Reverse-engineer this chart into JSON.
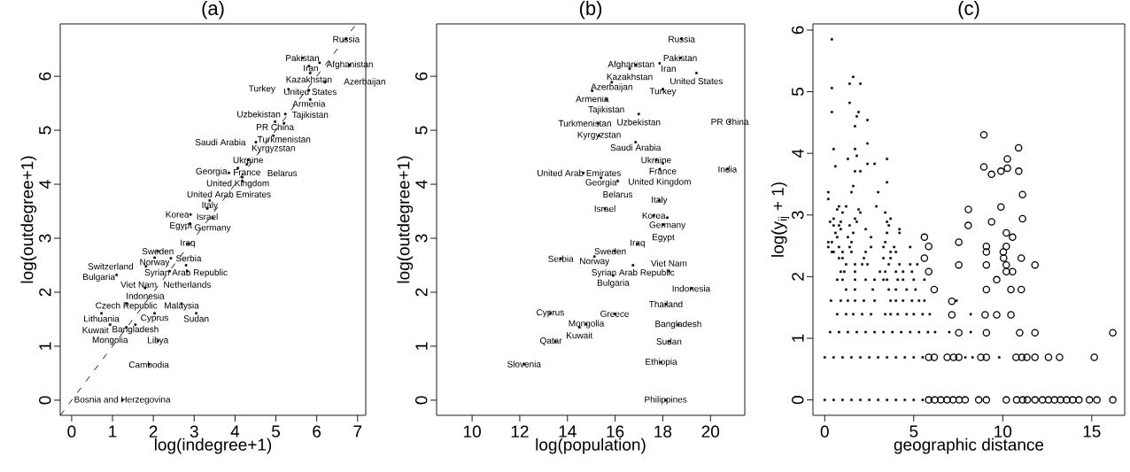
{
  "chart_data": [
    {
      "type": "scatter",
      "title": "(a)",
      "xlabel": "log(indegree+1)",
      "ylabel": "log(outdegree+1)",
      "xlim": [
        -0.28,
        7.2
      ],
      "ylim": [
        -0.28,
        6.97
      ],
      "xticks": [
        0,
        1,
        2,
        3,
        4,
        5,
        6,
        7
      ],
      "yticks": [
        0,
        1,
        2,
        3,
        4,
        5,
        6
      ],
      "series": [
        {
          "type": "line",
          "color": "#000000",
          "line_style": "dashed",
          "x": [
            -0.28,
            6.97
          ],
          "values": [
            -0.28,
            6.97
          ]
        },
        {
          "type": "scatter",
          "color": "#000000",
          "marker": "square",
          "x": [
            6.72,
            5.65,
            6.81,
            6.07,
            5.81,
            5.84,
            6.2,
            5.31,
            5.81,
            5.84,
            5.23,
            4.98,
            5.2,
            4.94,
            4.51,
            4.32,
            4.29,
            4.07,
            3.85,
            4.18,
            4.18,
            3.38,
            3.32,
            2.91,
            3.45,
            2.89,
            2.84,
            2.11,
            2.03,
            2.43,
            2.8,
            1.82,
            2.83,
            2.4,
            1.1,
            1.8,
            2.69,
            1.34,
            0.73,
            3.05,
            2.03,
            1.56,
            0.94,
            1.34,
            2.11,
            1.89,
            1.24
          ],
          "values": [
            6.69,
            6.34,
            6.21,
            6.25,
            6.19,
            6.06,
            5.89,
            5.76,
            5.74,
            5.57,
            5.3,
            5.16,
            5.13,
            4.9,
            4.78,
            4.45,
            4.37,
            4.3,
            4.21,
            4.13,
            4.06,
            3.7,
            3.55,
            3.44,
            3.38,
            3.27,
            2.9,
            2.76,
            2.64,
            2.63,
            2.5,
            2.48,
            2.39,
            2.39,
            2.32,
            2.08,
            1.79,
            1.79,
            1.61,
            1.61,
            1.61,
            1.4,
            1.4,
            1.35,
            1.1,
            0.66,
            0.0
          ]
        }
      ],
      "annotations": [
        {
          "text": "Russia",
          "x": 6.72,
          "y": 6.69
        },
        {
          "text": "Pakistan",
          "x": 5.65,
          "y": 6.34
        },
        {
          "text": "Afghanistan",
          "x": 6.81,
          "y": 6.21
        },
        {
          "text": "Iran",
          "x": 6.07,
          "y": 6.25
        },
        {
          "text": "Kazakhstan",
          "x": 5.81,
          "y": 6.19
        },
        {
          "text": "United States",
          "x": 5.84,
          "y": 6.06
        },
        {
          "text": "Azerbaijan",
          "x": 6.2,
          "y": 5.89
        },
        {
          "text": "Turkey",
          "x": 5.31,
          "y": 5.76
        },
        {
          "text": "Armenia",
          "x": 5.81,
          "y": 5.74
        },
        {
          "text": "Tajikistan",
          "x": 5.84,
          "y": 5.57
        },
        {
          "text": "Uzbekistan",
          "x": 5.23,
          "y": 5.3
        },
        {
          "text": "PR China",
          "x": 4.98,
          "y": 5.16
        },
        {
          "text": "Turkmenistan",
          "x": 5.2,
          "y": 5.13
        },
        {
          "text": "Kyrgyzstan",
          "x": 4.94,
          "y": 4.9
        },
        {
          "text": "Saudi Arabia",
          "x": 4.51,
          "y": 4.78
        },
        {
          "text": "Ukraine",
          "x": 4.32,
          "y": 4.45
        },
        {
          "text": "France",
          "x": 4.29,
          "y": 4.37
        },
        {
          "text": "United Kingdom",
          "x": 4.07,
          "y": 4.3
        },
        {
          "text": "United Arab Emirates",
          "x": 3.85,
          "y": 4.21
        },
        {
          "text": "Georgia",
          "x": 4.18,
          "y": 4.13
        },
        {
          "text": "Belarus",
          "x": 4.18,
          "y": 4.06
        },
        {
          "text": "Italy",
          "x": 3.38,
          "y": 3.7
        },
        {
          "text": "Israel",
          "x": 3.32,
          "y": 3.55
        },
        {
          "text": "Korea",
          "x": 2.91,
          "y": 3.44
        },
        {
          "text": "Germany",
          "x": 3.45,
          "y": 3.38
        },
        {
          "text": "Egypt",
          "x": 2.89,
          "y": 3.27
        },
        {
          "text": "Iraq",
          "x": 2.84,
          "y": 2.9
        },
        {
          "text": "Sweden",
          "x": 2.11,
          "y": 2.76
        },
        {
          "text": "Norway",
          "x": 2.03,
          "y": 2.64
        },
        {
          "text": "Serbia",
          "x": 2.43,
          "y": 2.63
        },
        {
          "text": "Syrian Arab Republic",
          "x": 2.8,
          "y": 2.5
        },
        {
          "text": "Switzerland",
          "x": 1.82,
          "y": 2.48
        },
        {
          "text": "Netherlands",
          "x": 2.83,
          "y": 2.39
        },
        {
          "text": "Viet Nam",
          "x": 2.4,
          "y": 2.39
        },
        {
          "text": "Bulgaria",
          "x": 1.1,
          "y": 2.32
        },
        {
          "text": "Indonesia",
          "x": 1.8,
          "y": 2.08
        },
        {
          "text": "Malaysia",
          "x": 2.69,
          "y": 1.79
        },
        {
          "text": "Czech Republic",
          "x": 1.34,
          "y": 1.79
        },
        {
          "text": "Lithuania",
          "x": 0.73,
          "y": 1.61
        },
        {
          "text": "Sudan",
          "x": 3.05,
          "y": 1.61
        },
        {
          "text": "Cyprus",
          "x": 2.03,
          "y": 1.61
        },
        {
          "text": "Bangladesh",
          "x": 1.56,
          "y": 1.4
        },
        {
          "text": "Mongolia",
          "x": 0.94,
          "y": 1.4
        },
        {
          "text": "Kuwait",
          "x": 1.34,
          "y": 1.35
        },
        {
          "text": "Libya",
          "x": 2.11,
          "y": 1.1
        },
        {
          "text": "Cambodia",
          "x": 1.89,
          "y": 0.66
        },
        {
          "text": "Bosnia and Herzegovina",
          "x": 1.24,
          "y": 0.0
        }
      ]
    },
    {
      "type": "scatter",
      "title": "(b)",
      "xlabel": "log(population)",
      "ylabel": "log(outdegree+1)",
      "xlim": [
        8.51,
        21.44
      ],
      "ylim": [
        -0.28,
        6.97
      ],
      "xticks": [
        10,
        12,
        14,
        16,
        18,
        20
      ],
      "yticks": [
        0,
        1,
        2,
        3,
        4,
        5,
        6
      ],
      "series": [
        {
          "color": "#000000",
          "marker": "square",
          "x": [
            18.79,
            18.73,
            16.86,
            17.87,
            16.61,
            19.41,
            15.86,
            18.0,
            15.04,
            15.63,
            16.99,
            20.81,
            15.29,
            15.33,
            16.86,
            17.72,
            18.0,
            17.87,
            20.71,
            14.67,
            15.41,
            16.11,
            17.85,
            15.57,
            17.62,
            18.19,
            18.02,
            16.94,
            15.98,
            13.72,
            15.13,
            16.75,
            18.26,
            15.92,
            19.19,
            18.13,
            13.28,
            15.98,
            18.65,
            14.79,
            14.5,
            13.49,
            18.26,
            12.18,
            17.93,
            18.12
          ],
          "values": [
            6.69,
            6.34,
            6.21,
            6.24,
            6.14,
            6.06,
            5.89,
            5.76,
            5.73,
            5.57,
            5.3,
            5.16,
            5.13,
            4.9,
            4.78,
            4.45,
            4.39,
            4.28,
            4.28,
            4.21,
            4.12,
            4.06,
            3.7,
            3.55,
            3.42,
            3.38,
            3.25,
            2.9,
            2.76,
            2.62,
            2.66,
            2.5,
            2.39,
            2.31,
            2.07,
            1.78,
            1.61,
            1.6,
            1.4,
            1.41,
            1.35,
            1.09,
            1.09,
            0.67,
            0.7,
            0.0
          ]
        }
      ],
      "annotations": [
        {
          "text": "Russia",
          "x": 18.79,
          "y": 6.69
        },
        {
          "text": "Pakistan",
          "x": 18.73,
          "y": 6.34
        },
        {
          "text": "Afghanistan",
          "x": 16.86,
          "y": 6.21
        },
        {
          "text": "Iran",
          "x": 17.87,
          "y": 6.24
        },
        {
          "text": "Kazakhstan",
          "x": 16.61,
          "y": 6.14
        },
        {
          "text": "United States",
          "x": 19.41,
          "y": 6.06
        },
        {
          "text": "Azerbaijan",
          "x": 15.86,
          "y": 5.89
        },
        {
          "text": "Turkey",
          "x": 18.0,
          "y": 5.76
        },
        {
          "text": "Armenia",
          "x": 15.04,
          "y": 5.73
        },
        {
          "text": "Tajikistan",
          "x": 15.63,
          "y": 5.57
        },
        {
          "text": "Uzbekistan",
          "x": 16.99,
          "y": 5.3
        },
        {
          "text": "PR China",
          "x": 20.81,
          "y": 5.16
        },
        {
          "text": "Turkmenistan",
          "x": 15.29,
          "y": 5.13
        },
        {
          "text": "Kyrgyzstan",
          "x": 15.33,
          "y": 4.9
        },
        {
          "text": "Saudi Arabia",
          "x": 16.86,
          "y": 4.78
        },
        {
          "text": "Ukraine",
          "x": 17.72,
          "y": 4.45
        },
        {
          "text": "France",
          "x": 18.0,
          "y": 4.39
        },
        {
          "text": "United Kingdom",
          "x": 17.87,
          "y": 4.28
        },
        {
          "text": "India",
          "x": 20.71,
          "y": 4.28
        },
        {
          "text": "United Arab Emirates",
          "x": 14.67,
          "y": 4.21
        },
        {
          "text": "Georgia",
          "x": 15.41,
          "y": 4.12
        },
        {
          "text": "Belarus",
          "x": 16.11,
          "y": 4.06
        },
        {
          "text": "Italy",
          "x": 17.85,
          "y": 3.7
        },
        {
          "text": "Israel",
          "x": 15.57,
          "y": 3.55
        },
        {
          "text": "Korea",
          "x": 17.62,
          "y": 3.42
        },
        {
          "text": "Germany",
          "x": 18.19,
          "y": 3.38
        },
        {
          "text": "Egypt",
          "x": 18.02,
          "y": 3.25
        },
        {
          "text": "Iraq",
          "x": 16.94,
          "y": 2.9
        },
        {
          "text": "Sweden",
          "x": 15.98,
          "y": 2.76
        },
        {
          "text": "Serbia",
          "x": 13.72,
          "y": 2.62
        },
        {
          "text": "Norway",
          "x": 15.13,
          "y": 2.66
        },
        {
          "text": "Syrian Arab Republic",
          "x": 16.75,
          "y": 2.5
        },
        {
          "text": "Viet Nam",
          "x": 18.26,
          "y": 2.39
        },
        {
          "text": "Bulgaria",
          "x": 15.92,
          "y": 2.31
        },
        {
          "text": "Indonesia",
          "x": 19.19,
          "y": 2.07
        },
        {
          "text": "Thailand",
          "x": 18.13,
          "y": 1.78
        },
        {
          "text": "Cyprus",
          "x": 13.28,
          "y": 1.61
        },
        {
          "text": "Greece",
          "x": 15.98,
          "y": 1.6
        },
        {
          "text": "Bangladesh",
          "x": 18.65,
          "y": 1.4
        },
        {
          "text": "Mongolia",
          "x": 14.79,
          "y": 1.41
        },
        {
          "text": "Kuwait",
          "x": 14.5,
          "y": 1.35
        },
        {
          "text": "Qatar",
          "x": 13.49,
          "y": 1.09
        },
        {
          "text": "Sudan",
          "x": 18.26,
          "y": 1.09
        },
        {
          "text": "Slovenia",
          "x": 12.18,
          "y": 0.67
        },
        {
          "text": "Ethiopia",
          "x": 17.93,
          "y": 0.7
        },
        {
          "text": "Philippines",
          "x": 18.12,
          "y": 0.0
        }
      ]
    },
    {
      "type": "scatter",
      "title": "(c)",
      "xlabel": "geographic distance",
      "ylabel": "log(y$_{ij}$ + 1)",
      "xlim": [
        -0.66,
        16.85
      ],
      "ylim": [
        -0.25,
        6.1
      ],
      "xticks": [
        0,
        5,
        10,
        15
      ],
      "yticks": [
        0,
        1,
        2,
        3,
        4,
        5,
        6
      ],
      "series": [
        {
          "color": "#000000",
          "marker": "square",
          "x": [
            0,
            0.5,
            1,
            1.5,
            2,
            2.5,
            3,
            3.5,
            4,
            4.5,
            5,
            5.5,
            6,
            0,
            0.5,
            1,
            1.5,
            2,
            2.5,
            3,
            3.5,
            4,
            4.5,
            5,
            5.5,
            7.9,
            8.3,
            9.8,
            0.3,
            0.8,
            1.3,
            1.8,
            2.3,
            2.8,
            3.3,
            3.8,
            4.3,
            4.8,
            5.3,
            5.8,
            6.2,
            7,
            8.2,
            0.7,
            1.2,
            1.6,
            2.1,
            2.6,
            3.4,
            3.7,
            4.1,
            4.6,
            5,
            5.5,
            5.9,
            8.2,
            0.35,
            0.9,
            1.3,
            1.7,
            2.2,
            2.8,
            3.7,
            4,
            4.4,
            4.9,
            5.3,
            5.6,
            7.4,
            1.2,
            1.7,
            2.7,
            3.6,
            4,
            4.6,
            5.1,
            0.7,
            1,
            1.7,
            2.3,
            2.8,
            3.3,
            3.5,
            4.1,
            4.4,
            5,
            5.6,
            0.9,
            1.1,
            1.7,
            3.1,
            3.4,
            4,
            4.4,
            4.9,
            1.2,
            1.7,
            2.1,
            2.4,
            3.6,
            4.2,
            4.8,
            5.2,
            0.8,
            1,
            2.2,
            3.3,
            3.7,
            0.4,
            0.5,
            1,
            1.5,
            2.3,
            3.7,
            4,
            0.2,
            0.8,
            1.4,
            2.6,
            3.3,
            3.9,
            4.8,
            0.2,
            0.4,
            1.5,
            3.4,
            0.7,
            1.3,
            2.6,
            0.6,
            1.6,
            3.5,
            4.2,
            0.9,
            2.3,
            4.2,
            0.5,
            0.8,
            1.4,
            3.6,
            0.3,
            0.9,
            1.8,
            3.5,
            0.5,
            1.7,
            3.7,
            1,
            2,
            3.4,
            0.7,
            1.9,
            0.8,
            1.2,
            2.9,
            0.2,
            0.2,
            1.5,
            3,
            1.6,
            3.5,
            1.7,
            2,
            0.6,
            2.4,
            2.8,
            1.3,
            3.5,
            1.8,
            0.5,
            1.7,
            2.4,
            1.7,
            2.4,
            1.8,
            0.4,
            1.9,
            1.4,
            0.4,
            1.4,
            2,
            1.6,
            0.4
          ],
          "values": [
            0,
            0,
            0,
            0,
            0,
            0,
            0,
            0,
            0,
            0,
            0,
            0,
            0,
            0.69,
            0.69,
            0.69,
            0.69,
            0.69,
            0.69,
            0.69,
            0.69,
            0.69,
            0.69,
            0.69,
            0.69,
            0.69,
            0.69,
            0.69,
            1.1,
            1.1,
            1.1,
            1.1,
            1.1,
            1.1,
            1.1,
            1.1,
            1.1,
            1.1,
            1.1,
            1.1,
            1.1,
            1.1,
            1.1,
            1.39,
            1.39,
            1.39,
            1.39,
            1.39,
            1.39,
            1.39,
            1.39,
            1.39,
            1.39,
            1.39,
            1.39,
            1.39,
            1.61,
            1.61,
            1.61,
            1.61,
            1.61,
            1.61,
            1.61,
            1.61,
            1.61,
            1.61,
            1.61,
            1.61,
            1.61,
            1.79,
            1.79,
            1.79,
            1.79,
            1.79,
            1.79,
            1.79,
            1.95,
            1.95,
            1.95,
            1.95,
            1.95,
            1.95,
            1.95,
            1.95,
            1.95,
            1.95,
            1.95,
            2.08,
            2.08,
            2.08,
            2.08,
            2.08,
            2.08,
            2.08,
            2.08,
            2.2,
            2.2,
            2.2,
            2.2,
            2.2,
            2.2,
            2.2,
            2.2,
            2.3,
            2.3,
            2.3,
            2.3,
            2.3,
            2.4,
            2.4,
            2.4,
            2.4,
            2.4,
            2.4,
            2.4,
            2.48,
            2.48,
            2.48,
            2.48,
            2.48,
            2.48,
            2.48,
            2.56,
            2.56,
            2.56,
            2.56,
            2.64,
            2.64,
            2.64,
            2.71,
            2.71,
            2.71,
            2.71,
            2.77,
            2.77,
            2.77,
            2.83,
            2.83,
            2.83,
            2.83,
            2.89,
            2.89,
            2.89,
            2.89,
            2.94,
            2.94,
            2.94,
            3.04,
            3.04,
            3.04,
            3.09,
            3.09,
            3.14,
            3.14,
            3.14,
            3.26,
            3.37,
            3.37,
            3.37,
            3.47,
            3.53,
            3.71,
            3.71,
            3.79,
            3.83,
            3.83,
            3.91,
            3.91,
            3.96,
            4.07,
            4.07,
            4.16,
            4.44,
            4.54,
            4.6,
            4.67,
            4.67,
            4.82,
            5.06,
            5.13,
            5.13,
            5.24,
            5.85
          ]
        },
        {
          "color": "#000000",
          "marker": "circle",
          "x": [
            8.94,
            10.89,
            10.26,
            8.94,
            10.26,
            9.37,
            9.9,
            10.9,
            11.11,
            9.9,
            8.07,
            11.11,
            9.37,
            8.06,
            10.2,
            10.55,
            5.6,
            7.53,
            5.84,
            9.08,
            10.2,
            9.08,
            10.03,
            5.6,
            10.05,
            11.04,
            7.53,
            9.08,
            10.2,
            11.81,
            5.84,
            10.2,
            10.55,
            9.66,
            6.15,
            9.08,
            10.46,
            11.04,
            7.14,
            7.14,
            9.01,
            9.66,
            10.46,
            7.53,
            9.08,
            10.95,
            11.81,
            16.18,
            5.84,
            6.15,
            6.88,
            7.24,
            7.53,
            8.77,
            9.08,
            10.75,
            11.07,
            11.35,
            11.81,
            12.57,
            13.19,
            15.14,
            5.84,
            6.18,
            6.52,
            6.87,
            7.21,
            7.55,
            7.89,
            8.65,
            9.08,
            10.2,
            10.78,
            11.12,
            11.38,
            11.81,
            12.23,
            12.57,
            12.91,
            13.25,
            13.59,
            13.93,
            14.28,
            14.87,
            15.29,
            16.18
          ],
          "values": [
            4.3,
            4.09,
            3.91,
            3.78,
            3.76,
            3.66,
            3.71,
            3.71,
            3.33,
            3.13,
            3.09,
            2.94,
            2.89,
            2.83,
            2.71,
            2.64,
            2.64,
            2.56,
            2.49,
            2.49,
            2.49,
            2.4,
            2.4,
            2.3,
            2.3,
            2.3,
            2.19,
            2.19,
            2.19,
            2.19,
            2.08,
            2.08,
            2.08,
            1.95,
            1.79,
            1.79,
            1.79,
            1.79,
            1.6,
            1.38,
            1.38,
            1.38,
            1.38,
            1.09,
            1.09,
            1.09,
            1.09,
            1.09,
            0.69,
            0.69,
            0.69,
            0.69,
            0.69,
            0.69,
            0.69,
            0.69,
            0.69,
            0.69,
            0.69,
            0.69,
            0.69,
            0.69,
            0,
            0,
            0,
            0,
            0,
            0,
            0,
            0,
            0,
            0,
            0,
            0,
            0,
            0,
            0,
            0,
            0,
            0,
            0,
            0,
            0,
            0,
            0,
            0
          ]
        }
      ]
    }
  ]
}
